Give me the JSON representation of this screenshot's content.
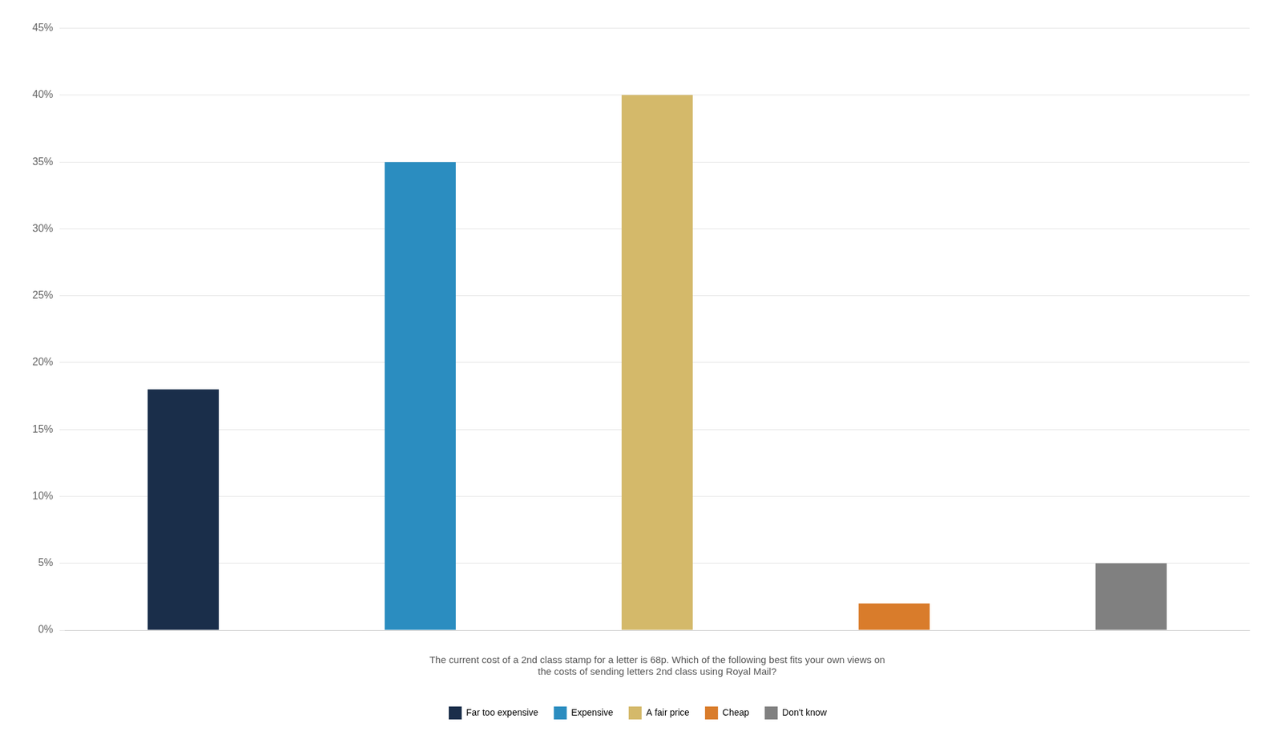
{
  "chart_data": {
    "type": "bar",
    "categories": [
      "Far too expensive",
      "Expensive",
      "A fair price",
      "Cheap",
      "Don't know"
    ],
    "values": [
      18,
      35,
      40,
      2,
      5
    ],
    "colors": [
      "#1a2e4a",
      "#2b8dc0",
      "#d4b96a",
      "#d97c2b",
      "#808080"
    ],
    "xlabel": [
      "The current cost of a 2nd class stamp for a letter is 68p. Which of the following best fits your own views on",
      "the costs of sending letters 2nd class using Royal Mail?"
    ],
    "ylim": [
      0,
      45
    ],
    "yticks": [
      {
        "value": 0,
        "label": "0%"
      },
      {
        "value": 5,
        "label": "5%"
      },
      {
        "value": 10,
        "label": "10%"
      },
      {
        "value": 15,
        "label": "15%"
      },
      {
        "value": 20,
        "label": "20%"
      },
      {
        "value": 25,
        "label": "25%"
      },
      {
        "value": 30,
        "label": "30%"
      },
      {
        "value": 35,
        "label": "35%"
      },
      {
        "value": 40,
        "label": "40%"
      },
      {
        "value": 45,
        "label": "45%"
      }
    ],
    "grid": true,
    "legend": "bottom",
    "tick_labels": "y"
  }
}
